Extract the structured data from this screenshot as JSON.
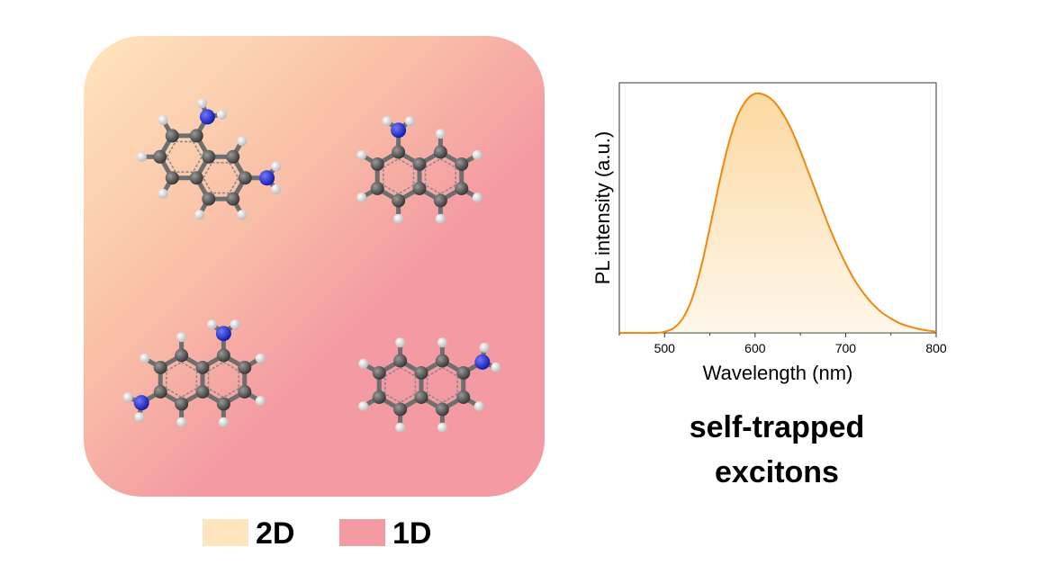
{
  "legend": [
    {
      "label": "2D",
      "color": "#FDE6BE"
    },
    {
      "label": "1D",
      "color": "#F39AA2"
    }
  ],
  "panel": {
    "gradient_light": "#FEE6BC",
    "gradient_mid": "#F9BDA6",
    "gradient_dark": "#F39AA2"
  },
  "molecules": [
    {
      "name": "1,5-diaminonaphthalene",
      "amines": 2
    },
    {
      "name": "1-aminonaphthalene",
      "amines": 1
    },
    {
      "name": "2,6-diaminonaphthalene",
      "amines": 2
    },
    {
      "name": "2-aminonaphthalene",
      "amines": 1
    }
  ],
  "atom_colors": {
    "carbon": "#555555",
    "nitrogen": "#1f2bd8",
    "hydrogen": "#e8e8e8"
  },
  "chart_data": {
    "type": "area",
    "xlabel": "Wavelength (nm)",
    "ylabel": "PL intensity (a.u.)",
    "xlim": [
      450,
      800
    ],
    "ylim": [
      0,
      1
    ],
    "xticks": [
      500,
      600,
      700,
      800
    ],
    "line_color": "#F0870E",
    "fill_color": "#FCD79C",
    "series": [
      {
        "x": [
          450,
          490,
          500,
          510,
          520,
          530,
          540,
          550,
          560,
          570,
          580,
          590,
          600,
          610,
          620,
          630,
          640,
          650,
          660,
          670,
          680,
          690,
          700,
          710,
          720,
          730,
          740,
          750,
          760,
          770,
          780,
          790,
          800
        ],
        "values": [
          0,
          0,
          0.005,
          0.02,
          0.06,
          0.14,
          0.27,
          0.44,
          0.62,
          0.78,
          0.9,
          0.97,
          1.0,
          0.995,
          0.97,
          0.92,
          0.85,
          0.76,
          0.66,
          0.56,
          0.46,
          0.37,
          0.29,
          0.22,
          0.165,
          0.12,
          0.085,
          0.06,
          0.04,
          0.027,
          0.017,
          0.01,
          0.005
        ]
      }
    ]
  },
  "caption": {
    "line1": "self-trapped",
    "line2": "excitons"
  }
}
